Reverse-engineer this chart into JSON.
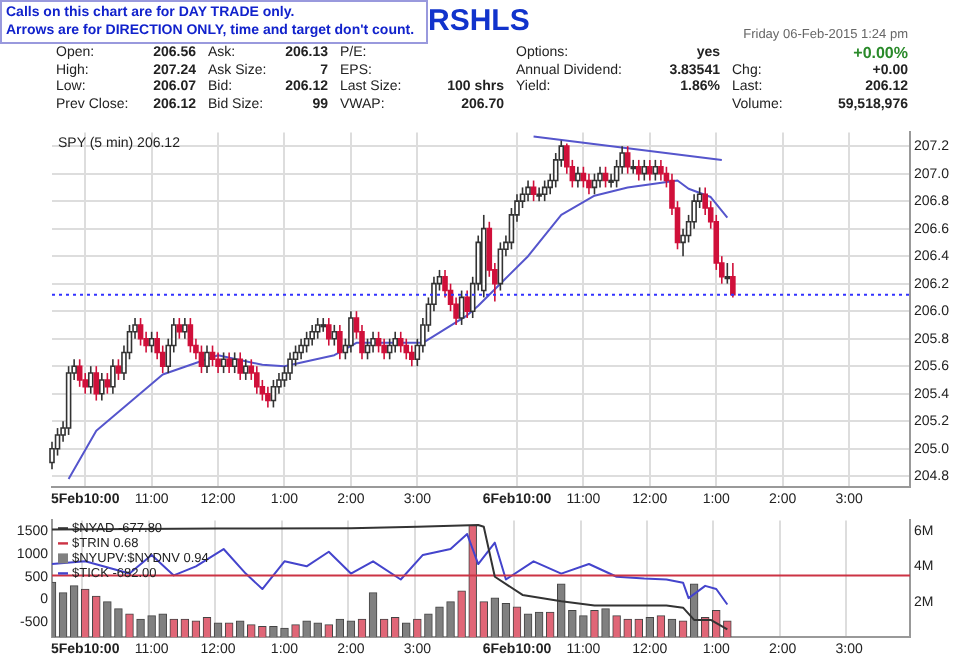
{
  "chart_data": [
    {
      "type": "candlestick",
      "title": "SPY (5 min) 206.12",
      "annotations": [
        "Calls on this chart are for DAY TRADE only.",
        "Arrows are for DIRECTION ONLY, time and target don't count.",
        "RSHLS",
        "Friday 06-Feb-2015 1:24 pm",
        "Open:",
        "206.56",
        "Ask:",
        "206.13",
        "P/E:",
        null,
        "Options:",
        "yes",
        null,
        "+0.00%",
        "High:",
        "207.24",
        "Ask Size:",
        "7",
        "EPS:",
        null,
        "Annual Dividend:",
        "3.83541",
        "Chg:",
        "+0.00",
        "Low:",
        "206.07",
        "Bid:",
        "206.12",
        "Last Size:",
        "100 shrs",
        "Yield:",
        "1.86%",
        "Last:",
        "206.12",
        "Prev Close:",
        "206.12",
        "Bid Size:",
        "99",
        "VWAP:",
        "206.70",
        null,
        null,
        "Volume:",
        "59,518,976"
      ],
      "categories": [
        null,
        null,
        null,
        null,
        null,
        null,
        "5Feb10:00",
        null,
        null,
        null,
        null,
        null,
        null,
        null,
        null,
        null,
        null,
        null,
        "11:00",
        null,
        null,
        null,
        null,
        null,
        null,
        null,
        null,
        null,
        null,
        null,
        "12:00",
        null,
        null,
        null,
        null,
        null,
        null,
        null,
        null,
        null,
        null,
        null,
        "1:00",
        null,
        null,
        null,
        null,
        null,
        null,
        null,
        null,
        null,
        null,
        null,
        "2:00",
        null,
        null,
        null,
        null,
        null,
        null,
        null,
        null,
        null,
        null,
        null,
        "3:00",
        null,
        null,
        null,
        null,
        null,
        null,
        null,
        null,
        null,
        null,
        null,
        null,
        null,
        null,
        null,
        null,
        null,
        "6Feb10:00",
        null,
        null,
        null,
        null,
        null,
        null,
        null,
        null,
        null,
        null,
        null,
        "11:00",
        null,
        null,
        null,
        null,
        null,
        null,
        null,
        null,
        null,
        null,
        null,
        "12:00",
        null,
        null,
        null,
        null,
        null,
        null,
        null,
        null,
        null,
        null,
        null,
        "1:00",
        null,
        null,
        null,
        null,
        null,
        null,
        null,
        null,
        null,
        null,
        null,
        "2:00",
        null,
        null,
        null,
        null,
        null,
        null,
        null,
        null,
        null,
        null,
        null,
        "3:00",
        null,
        null,
        null,
        null,
        null,
        null,
        null,
        null,
        null,
        null,
        null
      ],
      "ohlc": [
        [
          204.9,
          205.05,
          204.85,
          205.0
        ],
        [
          205.0,
          205.15,
          204.95,
          205.1
        ],
        [
          205.1,
          205.2,
          205.05,
          205.15
        ],
        [
          205.15,
          205.6,
          205.1,
          205.55
        ],
        [
          205.55,
          205.65,
          205.5,
          205.6
        ],
        [
          205.6,
          205.65,
          205.45,
          205.5
        ],
        [
          205.5,
          205.55,
          205.4,
          205.45
        ],
        [
          205.45,
          205.6,
          205.4,
          205.55
        ],
        [
          205.55,
          205.6,
          205.35,
          205.4
        ],
        [
          205.4,
          205.55,
          205.35,
          205.5
        ],
        [
          205.5,
          205.55,
          205.4,
          205.45
        ],
        [
          205.45,
          205.65,
          205.4,
          205.6
        ],
        [
          205.6,
          205.65,
          205.5,
          205.55
        ],
        [
          205.55,
          205.75,
          205.5,
          205.7
        ],
        [
          205.7,
          205.9,
          205.65,
          205.85
        ],
        [
          205.85,
          205.95,
          205.8,
          205.9
        ],
        [
          205.9,
          205.95,
          205.75,
          205.8
        ],
        [
          205.8,
          205.85,
          205.7,
          205.75
        ],
        [
          205.75,
          205.85,
          205.7,
          205.8
        ],
        [
          205.8,
          205.85,
          205.65,
          205.7
        ],
        [
          205.7,
          205.75,
          205.55,
          205.6
        ],
        [
          205.6,
          205.8,
          205.55,
          205.75
        ],
        [
          205.75,
          205.95,
          205.7,
          205.9
        ],
        [
          205.9,
          205.95,
          205.8,
          205.85
        ],
        [
          205.85,
          205.95,
          205.8,
          205.9
        ],
        [
          205.9,
          205.95,
          205.7,
          205.75
        ],
        [
          205.75,
          205.8,
          205.65,
          205.7
        ],
        [
          205.7,
          205.75,
          205.55,
          205.6
        ],
        [
          205.6,
          205.75,
          205.55,
          205.7
        ],
        [
          205.7,
          205.75,
          205.6,
          205.65
        ],
        [
          205.65,
          205.7,
          205.55,
          205.6
        ],
        [
          205.6,
          205.7,
          205.55,
          205.65
        ],
        [
          205.65,
          205.7,
          205.55,
          205.6
        ],
        [
          205.6,
          205.7,
          205.55,
          205.65
        ],
        [
          205.65,
          205.7,
          205.5,
          205.55
        ],
        [
          205.55,
          205.65,
          205.5,
          205.6
        ],
        [
          205.6,
          205.65,
          205.5,
          205.55
        ],
        [
          205.55,
          205.6,
          205.4,
          205.45
        ],
        [
          205.45,
          205.5,
          205.35,
          205.4
        ],
        [
          205.4,
          205.45,
          205.3,
          205.35
        ],
        [
          205.35,
          205.5,
          205.3,
          205.45
        ],
        [
          205.45,
          205.55,
          205.4,
          205.5
        ],
        [
          205.5,
          205.6,
          205.45,
          205.55
        ],
        [
          205.55,
          205.7,
          205.5,
          205.65
        ],
        [
          205.65,
          205.75,
          205.6,
          205.7
        ],
        [
          205.7,
          205.8,
          205.65,
          205.75
        ],
        [
          205.75,
          205.85,
          205.7,
          205.8
        ],
        [
          205.8,
          205.9,
          205.75,
          205.85
        ],
        [
          205.85,
          205.95,
          205.8,
          205.9
        ],
        [
          205.9,
          205.95,
          205.85,
          205.9
        ],
        [
          205.9,
          205.95,
          205.75,
          205.8
        ],
        [
          205.8,
          205.9,
          205.75,
          205.85
        ],
        [
          205.85,
          205.9,
          205.65,
          205.7
        ],
        [
          205.7,
          205.8,
          205.65,
          205.75
        ],
        [
          205.75,
          206.0,
          205.7,
          205.95
        ],
        [
          205.95,
          206.0,
          205.8,
          205.85
        ],
        [
          205.85,
          205.9,
          205.65,
          205.7
        ],
        [
          205.7,
          205.8,
          205.65,
          205.75
        ],
        [
          205.75,
          205.85,
          205.7,
          205.8
        ],
        [
          205.8,
          205.85,
          205.7,
          205.75
        ],
        [
          205.75,
          205.8,
          205.65,
          205.7
        ],
        [
          205.7,
          205.8,
          205.65,
          205.75
        ],
        [
          205.75,
          205.85,
          205.7,
          205.8
        ],
        [
          205.8,
          205.85,
          205.7,
          205.75
        ],
        [
          205.75,
          205.8,
          205.65,
          205.7
        ],
        [
          205.7,
          205.75,
          205.6,
          205.65
        ],
        [
          205.65,
          205.8,
          205.6,
          205.75
        ],
        [
          205.75,
          205.95,
          205.7,
          205.9
        ],
        [
          205.9,
          206.1,
          205.85,
          206.05
        ],
        [
          206.05,
          206.25,
          206.0,
          206.2
        ],
        [
          206.2,
          206.3,
          206.15,
          206.25
        ],
        [
          206.25,
          206.3,
          206.1,
          206.15
        ],
        [
          206.15,
          206.2,
          206.0,
          206.05
        ],
        [
          206.05,
          206.1,
          205.9,
          205.95
        ],
        [
          205.95,
          206.15,
          205.9,
          206.1
        ],
        [
          206.1,
          206.15,
          205.95,
          206.0
        ],
        [
          206.0,
          206.25,
          205.95,
          206.2
        ],
        [
          206.2,
          206.55,
          206.15,
          206.5
        ],
        [
          206.15,
          206.7,
          206.1,
          206.6
        ],
        [
          206.6,
          206.65,
          206.25,
          206.3
        ],
        [
          206.3,
          206.35,
          206.07,
          206.2
        ],
        [
          206.2,
          206.5,
          206.15,
          206.45
        ],
        [
          206.45,
          206.55,
          206.4,
          206.5
        ],
        [
          206.5,
          206.75,
          206.45,
          206.7
        ],
        [
          206.7,
          206.85,
          206.65,
          206.8
        ],
        [
          206.8,
          206.9,
          206.75,
          206.85
        ],
        [
          206.85,
          206.95,
          206.8,
          206.9
        ],
        [
          206.9,
          206.95,
          206.8,
          206.85
        ],
        [
          206.85,
          206.9,
          206.8,
          206.85
        ],
        [
          206.85,
          206.95,
          206.8,
          206.9
        ],
        [
          206.9,
          207.0,
          206.85,
          206.95
        ],
        [
          206.95,
          207.15,
          206.9,
          207.1
        ],
        [
          207.1,
          207.24,
          207.05,
          207.2
        ],
        [
          207.2,
          207.22,
          207.0,
          207.05
        ],
        [
          207.05,
          207.1,
          206.9,
          206.95
        ],
        [
          206.95,
          207.05,
          206.9,
          207.0
        ],
        [
          207.0,
          207.05,
          206.9,
          206.95
        ],
        [
          206.95,
          207.0,
          206.85,
          206.9
        ],
        [
          206.9,
          207.0,
          206.85,
          206.95
        ],
        [
          206.95,
          207.05,
          206.9,
          207.0
        ],
        [
          207.0,
          207.05,
          206.9,
          206.95
        ],
        [
          206.95,
          207.0,
          206.9,
          206.95
        ],
        [
          206.95,
          207.1,
          206.9,
          207.05
        ],
        [
          207.05,
          207.2,
          207.0,
          207.15
        ],
        [
          207.15,
          207.2,
          207.0,
          207.05
        ],
        [
          207.05,
          207.1,
          207.0,
          207.05
        ],
        [
          207.05,
          207.1,
          206.95,
          207.0
        ],
        [
          207.0,
          207.1,
          206.95,
          207.05
        ],
        [
          207.05,
          207.1,
          206.95,
          207.0
        ],
        [
          207.0,
          207.1,
          206.95,
          207.05
        ],
        [
          207.05,
          207.1,
          206.95,
          207.0
        ],
        [
          207.0,
          207.05,
          206.9,
          206.95
        ],
        [
          206.95,
          207.0,
          206.7,
          206.75
        ],
        [
          206.75,
          206.8,
          206.45,
          206.5
        ],
        [
          206.5,
          206.6,
          206.4,
          206.55
        ],
        [
          206.55,
          206.7,
          206.5,
          206.65
        ],
        [
          206.65,
          206.85,
          206.6,
          206.8
        ],
        [
          206.8,
          206.9,
          206.75,
          206.85
        ],
        [
          206.85,
          206.9,
          206.7,
          206.75
        ],
        [
          206.75,
          206.8,
          206.6,
          206.65
        ],
        [
          206.65,
          206.7,
          206.3,
          206.35
        ],
        [
          206.35,
          206.4,
          206.2,
          206.25
        ],
        [
          206.25,
          206.35,
          206.2,
          206.25
        ],
        [
          206.25,
          206.35,
          206.1,
          206.12
        ],
        null,
        null,
        null,
        null,
        null,
        null,
        null,
        null,
        null,
        null,
        null,
        null,
        null,
        null,
        null,
        null,
        null,
        null,
        null,
        null,
        null,
        null,
        null,
        null,
        null,
        null,
        null,
        null,
        null,
        null,
        null,
        null
      ],
      "series": [
        {
          "type": "line",
          "color": "#5555cc",
          "values": [
            null,
            null,
            null,
            204.78,
            null,
            null,
            null,
            null,
            205.13,
            null,
            null,
            null,
            null,
            null,
            null,
            null,
            null,
            null,
            null,
            null,
            205.54,
            null,
            null,
            null,
            null,
            null,
            null,
            null,
            null,
            null,
            205.68,
            null,
            null,
            null,
            null,
            null,
            null,
            null,
            205.61,
            null,
            null,
            null,
            205.6,
            null,
            null,
            null,
            null,
            null,
            null,
            null,
            null,
            205.68,
            null,
            null,
            null,
            205.77,
            null,
            null,
            null,
            null,
            null,
            null,
            null,
            null,
            null,
            null,
            null,
            205.77,
            null,
            null,
            null,
            null,
            null,
            null,
            null,
            205.97,
            null,
            206.04,
            206.08,
            null,
            null,
            206.2,
            null,
            null,
            null,
            null,
            206.4,
            null,
            null,
            null,
            null,
            null,
            206.7,
            null,
            null,
            null,
            null,
            null,
            206.84,
            null,
            null,
            null,
            null,
            null,
            206.9,
            null,
            null,
            null,
            null,
            null,
            null,
            null,
            null,
            206.95,
            null,
            206.89,
            null,
            null,
            null,
            206.83,
            null,
            null,
            206.68,
            null,
            null,
            null,
            null,
            null,
            null,
            null,
            null,
            null,
            null,
            null,
            null,
            null,
            null,
            null,
            null,
            null,
            null,
            null,
            null,
            null,
            null,
            null,
            null,
            null,
            null,
            null,
            null,
            null,
            null,
            null,
            null,
            null
          ]
        },
        {
          "type": "line",
          "color": "#5555cc",
          "values": [
            null,
            null,
            null,
            null,
            null,
            null,
            null,
            null,
            null,
            null,
            null,
            null,
            null,
            null,
            null,
            null,
            null,
            null,
            null,
            null,
            null,
            null,
            null,
            null,
            null,
            null,
            null,
            null,
            null,
            null,
            null,
            null,
            null,
            null,
            null,
            null,
            null,
            null,
            null,
            null,
            null,
            null,
            null,
            null,
            null,
            null,
            null,
            null,
            null,
            null,
            null,
            null,
            null,
            null,
            null,
            null,
            null,
            null,
            null,
            null,
            null,
            null,
            null,
            null,
            null,
            null,
            null,
            null,
            null,
            null,
            null,
            null,
            null,
            null,
            null,
            null,
            null,
            null,
            null,
            null,
            null,
            null,
            null,
            null,
            null,
            null,
            null,
            207.27,
            null,
            null,
            null,
            null,
            null,
            null,
            null,
            null,
            null,
            null,
            null,
            null,
            null,
            null,
            null,
            null,
            null,
            null,
            null,
            null,
            null,
            null,
            null,
            null,
            null,
            null,
            null,
            null,
            null,
            null,
            null,
            null,
            null,
            207.1,
            null,
            null,
            null,
            null,
            null,
            null,
            null,
            null,
            null,
            null,
            null,
            null,
            null,
            null,
            null,
            null,
            null,
            null,
            null,
            null,
            null,
            null,
            null,
            null,
            null,
            null,
            null,
            null,
            null,
            null,
            null,
            null,
            null,
            null
          ]
        }
      ],
      "ref_lines": [
        {
          "axis": "y",
          "value": 206.12,
          "color": "#3333ff",
          "line_style": "dotted"
        }
      ],
      "ylim": [
        204.72,
        207.3
      ],
      "yticks": [
        204.8,
        {
          "value": 205,
          "label": "205.0"
        },
        205.2,
        205.4,
        205.6,
        205.8,
        {
          "value": 206,
          "label": "206.0"
        },
        206.2,
        206.4,
        206.6,
        206.8,
        {
          "value": 207,
          "label": "207.0"
        },
        207.2
      ],
      "grid": true,
      "legend": false,
      "marker": "none"
    },
    {
      "type": "line",
      "legend": "top left",
      "marker": "none",
      "grid": "x",
      "categories": [
        null,
        null,
        null,
        null,
        null,
        null,
        "5Feb10:00",
        null,
        null,
        null,
        null,
        null,
        null,
        null,
        null,
        null,
        null,
        null,
        "11:00",
        null,
        null,
        null,
        null,
        null,
        null,
        null,
        null,
        null,
        null,
        null,
        "12:00",
        null,
        null,
        null,
        null,
        null,
        null,
        null,
        null,
        null,
        null,
        null,
        "1:00",
        null,
        null,
        null,
        null,
        null,
        null,
        null,
        null,
        null,
        null,
        null,
        "2:00",
        null,
        null,
        null,
        null,
        null,
        null,
        null,
        null,
        null,
        null,
        null,
        "3:00",
        null,
        null,
        null,
        null,
        null,
        null,
        null,
        null,
        null,
        null,
        null,
        null,
        null,
        null,
        null,
        null,
        null,
        "6Feb10:00",
        null,
        null,
        null,
        null,
        null,
        null,
        null,
        null,
        null,
        null,
        null,
        "11:00",
        null,
        null,
        null,
        null,
        null,
        null,
        null,
        null,
        null,
        null,
        null,
        "12:00",
        null,
        null,
        null,
        null,
        null,
        null,
        null,
        null,
        null,
        null,
        null,
        "1:00",
        null,
        null,
        null,
        null,
        null,
        null,
        null,
        null,
        null,
        null,
        null,
        "2:00",
        null,
        null,
        null,
        null,
        null,
        null,
        null,
        null,
        null,
        null,
        null,
        "3:00",
        null,
        null,
        null,
        null,
        null,
        null,
        null,
        null,
        null,
        null,
        null
      ],
      "series": [
        {
          "name": "$NYAD -677.80",
          "color": "#333333",
          "values": [
            1540,
            null,
            null,
            null,
            null,
            null,
            null,
            null,
            null,
            null,
            null,
            null,
            null,
            null,
            null,
            null,
            null,
            null,
            null,
            null,
            null,
            null,
            null,
            null,
            null,
            null,
            null,
            null,
            null,
            null,
            1560,
            null,
            null,
            null,
            null,
            null,
            null,
            null,
            null,
            null,
            null,
            null,
            null,
            null,
            null,
            null,
            null,
            null,
            null,
            null,
            null,
            null,
            null,
            null,
            1570,
            null,
            null,
            null,
            null,
            null,
            null,
            null,
            null,
            null,
            null,
            null,
            1600,
            null,
            null,
            null,
            null,
            null,
            null,
            null,
            null,
            null,
            null,
            1640,
            1600,
            null,
            500,
            null,
            null,
            null,
            null,
            100,
            null,
            null,
            null,
            null,
            null,
            null,
            -40,
            null,
            null,
            null,
            null,
            null,
            -130,
            null,
            null,
            null,
            null,
            null,
            null,
            null,
            null,
            null,
            null,
            null,
            null,
            -130,
            null,
            null,
            -180,
            null,
            -450,
            null,
            null,
            -450,
            null,
            null,
            -660,
            null,
            null,
            null,
            null,
            null,
            null,
            null,
            null,
            null,
            null,
            null,
            null,
            null,
            null,
            null,
            null,
            null,
            null,
            null,
            null,
            null,
            null,
            null,
            null,
            null,
            null,
            null,
            null,
            null,
            null,
            null,
            null,
            null
          ]
        },
        {
          "name": "$TRIN 0.68",
          "color": "#cc3344",
          "values": [
            530,
            null,
            null,
            null,
            null,
            null,
            null,
            null,
            null,
            null,
            null,
            null,
            null,
            null,
            null,
            null,
            null,
            null,
            null,
            null,
            null,
            null,
            null,
            null,
            null,
            null,
            null,
            null,
            null,
            null,
            null,
            null,
            null,
            null,
            null,
            null,
            null,
            null,
            null,
            null,
            null,
            null,
            null,
            null,
            null,
            null,
            null,
            null,
            null,
            null,
            null,
            null,
            null,
            null,
            null,
            null,
            null,
            null,
            null,
            null,
            null,
            null,
            null,
            null,
            null,
            null,
            null,
            null,
            null,
            null,
            null,
            null,
            null,
            null,
            null,
            null,
            null,
            null,
            null,
            null,
            null,
            null,
            null,
            null,
            null,
            null,
            null,
            null,
            null,
            null,
            null,
            null,
            null,
            null,
            null,
            null,
            null,
            null,
            null,
            null,
            null,
            null,
            null,
            null,
            null,
            null,
            null,
            null,
            null,
            null,
            null,
            null,
            null,
            null,
            null,
            null,
            null,
            null,
            null,
            null,
            null,
            null,
            null,
            null,
            null,
            null,
            null,
            null,
            null,
            null,
            null,
            null,
            null,
            null,
            null,
            null,
            null,
            null,
            null,
            null,
            null,
            null,
            null,
            null,
            null,
            null,
            null,
            null,
            null,
            null,
            null,
            null,
            null,
            null,
            null,
            530
          ]
        },
        {
          "name": "$NYUPV:$NYDNV 0.94",
          "type": "bar",
          "axis": "y2",
          "color": "#808080",
          "values": [
            3.1,
            null,
            2.5,
            null,
            2.9,
            null,
            2.7,
            null,
            2.3,
            null,
            2.0,
            null,
            1.6,
            null,
            1.3,
            null,
            1.0,
            null,
            1.2,
            null,
            1.3,
            null,
            1.0,
            null,
            1.0,
            null,
            0.9,
            null,
            1.1,
            null,
            0.8,
            null,
            0.8,
            null,
            0.9,
            null,
            0.7,
            null,
            0.6,
            null,
            0.6,
            null,
            0.5,
            null,
            0.7,
            null,
            0.9,
            null,
            0.8,
            null,
            0.7,
            null,
            1.0,
            null,
            0.9,
            null,
            1.0,
            null,
            2.5,
            null,
            1.0,
            null,
            1.1,
            null,
            0.8,
            null,
            1.0,
            null,
            1.3,
            null,
            1.7,
            null,
            2.0,
            null,
            2.6,
            null,
            6.3,
            null,
            2.0,
            null,
            2.2,
            null,
            1.9,
            null,
            1.7,
            null,
            1.3,
            null,
            1.4,
            null,
            1.4,
            null,
            3.0,
            null,
            1.5,
            null,
            1.2,
            null,
            1.5,
            null,
            1.6,
            null,
            1.2,
            null,
            1.0,
            null,
            1.0,
            null,
            1.1,
            null,
            1.2,
            null,
            1.0,
            null,
            0.9,
            null,
            3.0,
            null,
            1.1,
            null,
            1.5,
            null,
            0.9,
            null,
            null,
            null,
            null,
            null,
            null,
            null,
            null,
            null,
            null,
            null,
            null,
            null,
            null,
            null,
            null,
            null,
            null,
            null,
            null,
            null,
            null,
            null,
            null,
            null,
            null,
            null,
            null,
            null,
            null,
            null,
            null,
            null
          ],
          "colors": [
            "#808080",
            null,
            "#808080",
            null,
            "#808080",
            null,
            "#e06677",
            null,
            "#e06677",
            null,
            "#808080",
            null,
            "#808080",
            null,
            "#e06677",
            null,
            "#808080",
            null,
            "#808080",
            null,
            "#808080",
            null,
            "#e06677",
            null,
            "#e06677",
            null,
            "#e06677",
            null,
            "#e06677",
            null,
            "#808080",
            null,
            "#e06677",
            null,
            "#808080",
            null,
            "#e06677",
            null,
            "#e06677",
            null,
            "#808080",
            null,
            "#808080",
            null,
            "#e06677",
            null,
            "#808080",
            null,
            "#808080",
            null,
            "#e06677",
            null,
            "#808080",
            null,
            "#808080",
            null,
            "#e06677",
            null,
            "#808080",
            null,
            "#e06677",
            null,
            "#e06677",
            null,
            "#808080",
            null,
            "#e06677",
            null,
            "#808080",
            null,
            "#808080",
            null,
            "#808080",
            null,
            "#e06677",
            null,
            "#e06677",
            null,
            "#e06677",
            null,
            "#808080",
            null,
            "#808080",
            null,
            "#e06677",
            null,
            "#808080",
            null,
            "#808080",
            null,
            "#e06677",
            null,
            "#808080",
            null,
            "#808080",
            null,
            "#808080",
            null,
            "#e06677",
            null,
            "#808080",
            null,
            "#e06677",
            null,
            "#e06677",
            null,
            "#e06677",
            null,
            "#808080",
            null,
            "#e06677",
            null,
            "#808080",
            null,
            "#e06677",
            null,
            "#808080",
            null,
            "#e06677",
            null,
            "#e06677",
            null,
            "#e06677",
            null,
            null,
            null,
            null,
            null,
            null,
            null,
            null,
            null,
            null,
            null,
            null,
            null,
            null,
            null,
            null,
            null,
            null,
            null,
            null,
            null,
            null,
            null,
            null,
            null,
            null,
            null,
            null,
            null,
            null,
            null,
            null,
            null
          ]
        },
        {
          "name": "$TICK -682.00",
          "color": "#4444cc",
          "values": [
            780,
            null,
            null,
            null,
            null,
            null,
            840,
            null,
            null,
            null,
            null,
            null,
            null,
            null,
            570,
            null,
            null,
            null,
            980,
            null,
            null,
            null,
            530,
            null,
            null,
            null,
            730,
            null,
            null,
            null,
            null,
            1110,
            null,
            null,
            null,
            570,
            null,
            null,
            230,
            null,
            null,
            null,
            840,
            null,
            null,
            null,
            730,
            null,
            null,
            null,
            1050,
            null,
            null,
            null,
            570,
            null,
            null,
            null,
            840,
            null,
            null,
            null,
            null,
            440,
            null,
            null,
            null,
            980,
            null,
            null,
            null,
            null,
            1110,
            null,
            null,
            1440,
            null,
            780,
            null,
            null,
            1250,
            null,
            440,
            null,
            null,
            null,
            null,
            840,
            null,
            null,
            null,
            null,
            570,
            null,
            null,
            null,
            null,
            780,
            null,
            null,
            null,
            null,
            500,
            null,
            null,
            null,
            null,
            460,
            null,
            null,
            null,
            440,
            null,
            null,
            370,
            30,
            null,
            null,
            300,
            null,
            230,
            null,
            -110,
            null,
            null,
            null,
            null,
            null,
            null,
            null,
            null,
            null,
            null,
            null,
            null,
            null,
            null,
            null,
            null,
            null,
            null,
            null,
            null,
            null,
            null,
            null,
            null,
            null,
            null,
            null,
            null,
            null,
            null,
            null,
            null,
            null
          ]
        }
      ],
      "ylim": [
        -830,
        1740
      ],
      "yticks": [
        -500,
        0,
        500,
        1000,
        1500
      ],
      "y2lim": [
        0,
        6.6
      ],
      "y2ticks": [
        {
          "value": 2,
          "label": "2M"
        },
        {
          "value": 4,
          "label": "4M"
        },
        {
          "value": 6,
          "label": "6M"
        }
      ]
    }
  ]
}
